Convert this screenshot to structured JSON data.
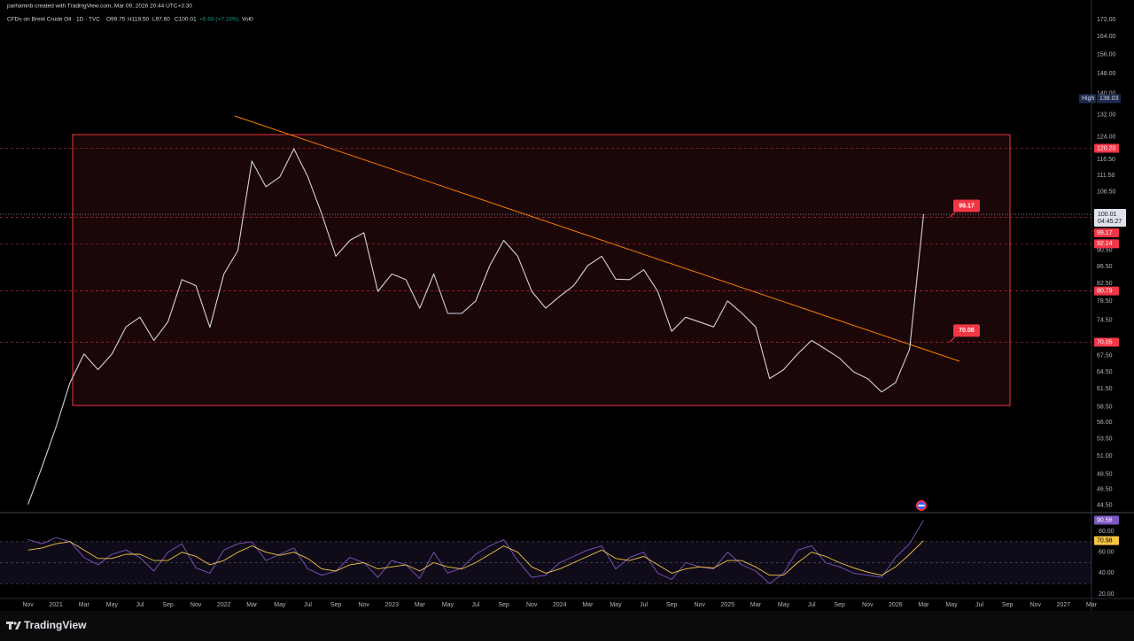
{
  "header": {
    "credit": "parhamnb created with TradingView.com, Mar 09, 2026 20:44 UTC+3:30",
    "symbol": "CFDs on Brent Crude Oil · 1D · TVC",
    "open": "O99.75",
    "high": "H119.50",
    "low": "L97.60",
    "close": "C100.01",
    "change": "+6.68 (+7.16%)",
    "volume": "Vol0"
  },
  "chart_data": {
    "type": "line",
    "log_scale": true,
    "grid": false,
    "x": [
      "2020-11",
      "2020-12",
      "2021-01",
      "2021-02",
      "2021-03",
      "2021-04",
      "2021-05",
      "2021-06",
      "2021-07",
      "2021-08",
      "2021-09",
      "2021-10",
      "2021-11",
      "2021-12",
      "2022-01",
      "2022-02",
      "2022-03",
      "2022-04",
      "2022-05",
      "2022-06",
      "2022-07",
      "2022-08",
      "2022-09",
      "2022-10",
      "2022-11",
      "2022-12",
      "2023-01",
      "2023-02",
      "2023-03",
      "2023-04",
      "2023-05",
      "2023-06",
      "2023-07",
      "2023-08",
      "2023-09",
      "2023-10",
      "2023-11",
      "2023-12",
      "2024-01",
      "2024-02",
      "2024-03",
      "2024-04",
      "2024-05",
      "2024-06",
      "2024-07",
      "2024-08",
      "2024-09",
      "2024-10",
      "2024-11",
      "2024-12",
      "2025-01",
      "2025-02",
      "2025-03",
      "2025-04",
      "2025-05",
      "2025-06",
      "2025-07",
      "2025-08",
      "2025-09",
      "2025-10",
      "2025-11",
      "2025-12",
      "2026-01",
      "2026-02",
      "2026-03"
    ],
    "series": [
      {
        "color": "#d1d4dc",
        "values": [
          44.6,
          49.5,
          55.3,
          62.6,
          67.8,
          64.9,
          67.8,
          73.1,
          75.1,
          70.4,
          74.1,
          83.4,
          82.0,
          73.0,
          84.7,
          90.4,
          116.0,
          108.0,
          111.0,
          120.0,
          111.0,
          100.0,
          89.0,
          93.0,
          95.0,
          80.7,
          84.7,
          83.4,
          77.0,
          84.7,
          75.9,
          75.9,
          78.6,
          86.7,
          93.0,
          89.0,
          80.7,
          77.0,
          79.6,
          82.0,
          86.7,
          89.0,
          83.5,
          83.4,
          85.7,
          80.7,
          72.2,
          75.1,
          74.1,
          73.1,
          78.6,
          76.0,
          73.1,
          63.3,
          64.9,
          67.8,
          70.4,
          68.7,
          67.0,
          64.5,
          63.3,
          61.0,
          62.6,
          68.7,
          100.01
        ]
      },
      {
        "color": "#7e57c2",
        "axis": "y2",
        "values": [
          72,
          68,
          74,
          70,
          55,
          48,
          58,
          62,
          55,
          42,
          60,
          68,
          45,
          40,
          62,
          68,
          70,
          52,
          58,
          64,
          44,
          38,
          42,
          55,
          50,
          36,
          52,
          48,
          35,
          60,
          40,
          45,
          58,
          66,
          72,
          52,
          36,
          38,
          50,
          56,
          62,
          66,
          44,
          55,
          60,
          40,
          34,
          50,
          46,
          44,
          60,
          48,
          42,
          30,
          40,
          62,
          66,
          50,
          46,
          40,
          38,
          36,
          55,
          68,
          90.56
        ]
      },
      {
        "color": "#f5c542",
        "axis": "y2",
        "values": [
          62,
          64,
          68,
          70,
          62,
          54,
          54,
          58,
          58,
          52,
          52,
          60,
          56,
          48,
          52,
          60,
          66,
          60,
          57,
          60,
          54,
          44,
          42,
          48,
          50,
          44,
          46,
          48,
          42,
          50,
          46,
          44,
          50,
          58,
          66,
          60,
          46,
          40,
          44,
          50,
          56,
          62,
          54,
          52,
          56,
          48,
          40,
          44,
          46,
          45,
          52,
          52,
          46,
          38,
          38,
          50,
          60,
          56,
          50,
          45,
          41,
          38,
          46,
          58,
          70.98
        ]
      }
    ],
    "xlim": [
      "2020-09",
      "2027-03"
    ],
    "xticks": [
      {
        "value": "2020-11",
        "label": "Nov"
      },
      {
        "value": "2021-01",
        "label": "2021"
      },
      {
        "value": "2021-03",
        "label": "Mar"
      },
      {
        "value": "2021-05",
        "label": "May"
      },
      {
        "value": "2021-07",
        "label": "Jul"
      },
      {
        "value": "2021-09",
        "label": "Sep"
      },
      {
        "value": "2021-11",
        "label": "Nov"
      },
      {
        "value": "2022-01",
        "label": "2022"
      },
      {
        "value": "2022-03",
        "label": "Mar"
      },
      {
        "value": "2022-05",
        "label": "May"
      },
      {
        "value": "2022-07",
        "label": "Jul"
      },
      {
        "value": "2022-09",
        "label": "Sep"
      },
      {
        "value": "2022-11",
        "label": "Nov"
      },
      {
        "value": "2023-01",
        "label": "2023"
      },
      {
        "value": "2023-03",
        "label": "Mar"
      },
      {
        "value": "2023-05",
        "label": "May"
      },
      {
        "value": "2023-07",
        "label": "Jul"
      },
      {
        "value": "2023-09",
        "label": "Sep"
      },
      {
        "value": "2023-11",
        "label": "Nov"
      },
      {
        "value": "2024-01",
        "label": "2024"
      },
      {
        "value": "2024-03",
        "label": "Mar"
      },
      {
        "value": "2024-05",
        "label": "May"
      },
      {
        "value": "2024-07",
        "label": "Jul"
      },
      {
        "value": "2024-09",
        "label": "Sep"
      },
      {
        "value": "2024-11",
        "label": "Nov"
      },
      {
        "value": "2025-01",
        "label": "2025"
      },
      {
        "value": "2025-03",
        "label": "Mar"
      },
      {
        "value": "2025-05",
        "label": "May"
      },
      {
        "value": "2025-07",
        "label": "Jul"
      },
      {
        "value": "2025-09",
        "label": "Sep"
      },
      {
        "value": "2025-11",
        "label": "Nov"
      },
      {
        "value": "2026-01",
        "label": "2026"
      },
      {
        "value": "2026-03",
        "label": "Mar"
      },
      {
        "value": "2026-05",
        "label": "May"
      },
      {
        "value": "2026-07",
        "label": "Jul"
      },
      {
        "value": "2026-09",
        "label": "Sep"
      },
      {
        "value": "2026-11",
        "label": "Nov"
      },
      {
        "value": "2027-01",
        "label": "2027"
      },
      {
        "value": "2027-03",
        "label": "Mar"
      }
    ],
    "ylim": [
      43.7,
      181.6
    ],
    "yticks": [
      {
        "value": 172,
        "label": "172.00"
      },
      {
        "value": 164,
        "label": "164.00"
      },
      {
        "value": 156,
        "label": "156.00"
      },
      {
        "value": 148,
        "label": "148.00"
      },
      {
        "value": 140,
        "label": "140.00"
      },
      {
        "value": 132,
        "label": "132.00"
      },
      {
        "value": 124,
        "label": "124.00"
      },
      {
        "value": 116.5,
        "label": "116.50"
      },
      {
        "value": 111.5,
        "label": "111.50"
      },
      {
        "value": 106.5,
        "label": "106.50"
      },
      {
        "value": 90.5,
        "label": "90.50"
      },
      {
        "value": 86.5,
        "label": "86.50"
      },
      {
        "value": 82.5,
        "label": "82.50"
      },
      {
        "value": 78.5,
        "label": "78.50"
      },
      {
        "value": 74.5,
        "label": "74.50"
      },
      {
        "value": 67.5,
        "label": "67.50"
      },
      {
        "value": 64.5,
        "label": "64.50"
      },
      {
        "value": 61.5,
        "label": "61.50"
      },
      {
        "value": 58.5,
        "label": "58.50"
      },
      {
        "value": 56,
        "label": "56.00"
      },
      {
        "value": 53.5,
        "label": "53.50"
      },
      {
        "value": 51,
        "label": "51.00"
      },
      {
        "value": 48.5,
        "label": "48.50"
      },
      {
        "value": 46.5,
        "label": "46.50"
      },
      {
        "value": 44.5,
        "label": "44.50"
      }
    ],
    "y2lim": [
      15.8,
      96.9
    ],
    "y2ticks": [
      {
        "value": 80,
        "label": "80.00"
      },
      {
        "value": 60,
        "label": "60.00"
      },
      {
        "value": 40,
        "label": "40.00"
      },
      {
        "value": 20,
        "label": "20.00"
      }
    ],
    "y2_levels": [
      70,
      50,
      30
    ],
    "last_price": {
      "value": 100.01,
      "countdown": "04:45:27"
    },
    "price_levels": [
      {
        "value": 120.2,
        "label": "120.20"
      },
      99.17,
      92.14,
      80.79,
      70.05
    ],
    "high": {
      "label": "High",
      "value": 138.03
    },
    "callouts": [
      99.17,
      70.08
    ]
  },
  "footer": {
    "brand": "TradingView"
  }
}
